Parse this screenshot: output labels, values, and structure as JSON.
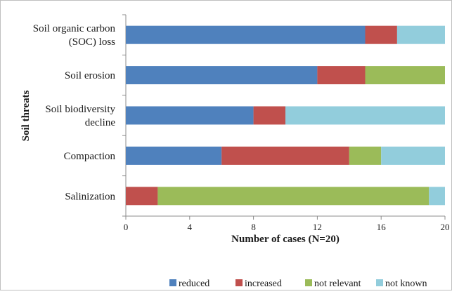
{
  "chart_data": {
    "type": "bar",
    "orientation": "horizontal",
    "stacked": true,
    "categories": [
      [
        "Soil organic carbon",
        "(SOC) loss"
      ],
      [
        "Soil erosion"
      ],
      [
        "Soil biodiversity",
        "decline"
      ],
      [
        "Compaction"
      ],
      [
        "Salinization"
      ]
    ],
    "series": [
      {
        "name": "reduced",
        "color": "#4f81bd",
        "values": [
          15,
          12,
          8,
          6,
          0
        ]
      },
      {
        "name": "increased",
        "color": "#c0504d",
        "values": [
          2,
          3,
          2,
          8,
          2
        ]
      },
      {
        "name": "not relevant",
        "color": "#9bbb59",
        "values": [
          0,
          5,
          0,
          2,
          17
        ]
      },
      {
        "name": "not known",
        "color": "#92cddc",
        "values": [
          3,
          0,
          10,
          4,
          1
        ]
      }
    ],
    "xlabel": "Number of cases (N=20)",
    "ylabel": "Soil threats",
    "xlim": [
      0,
      20
    ],
    "xticks": [
      0,
      4,
      8,
      12,
      16,
      20
    ],
    "grid": false,
    "legend_position": "bottom"
  }
}
